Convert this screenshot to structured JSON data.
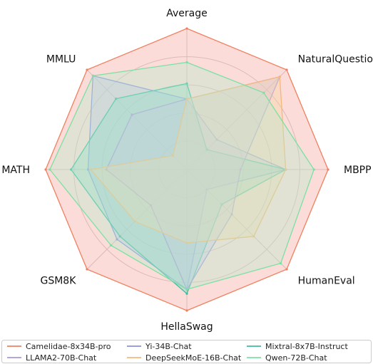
{
  "chart_data": {
    "type": "radar",
    "axes": [
      "Average",
      "NaturalQuestions",
      "MBPP",
      "HumanEval",
      "HellaSwag",
      "GSM8K",
      "MATH",
      "MMLU"
    ],
    "range": [
      0,
      1
    ],
    "grid": true,
    "legend_position": "bottom",
    "legend_columns": 4,
    "series": [
      {
        "name": "Camelidae-8x34B-pro",
        "color": "#f08060",
        "fill": "#f7a8a0",
        "values": [
          1.0,
          1.0,
          1.0,
          1.0,
          1.0,
          1.0,
          1.0,
          1.0
        ]
      },
      {
        "name": "Yi-34B-Chat",
        "color": "#8c8fdc",
        "fill": "#b8bbf0",
        "values": [
          0.5,
          0.3,
          0.7,
          0.2,
          0.85,
          0.7,
          0.7,
          0.94
        ]
      },
      {
        "name": "Mixtral-8x7B-Instruct",
        "color": "#3cbca0",
        "fill": "#7fd8c4",
        "values": [
          0.61,
          0.2,
          0.7,
          0.35,
          0.88,
          0.67,
          0.82,
          0.71
        ]
      },
      {
        "name": "LLAMA2-70B-Chat",
        "color": "#a99ad8",
        "fill": "#c9bfe8",
        "values": [
          0.5,
          0.93,
          0.38,
          0.45,
          0.85,
          0.36,
          0.57,
          0.55
        ]
      },
      {
        "name": "DeepSeekMoE-16B-Chat",
        "color": "#f4b87a",
        "fill": "#f8d4a8",
        "values": [
          0.5,
          0.93,
          0.7,
          0.67,
          0.52,
          0.52,
          0.68,
          0.14
        ]
      },
      {
        "name": "Qwen-72B-Chat",
        "color": "#7ce0a4",
        "fill": "#b8eccc",
        "values": [
          0.76,
          0.77,
          0.9,
          0.94,
          0.85,
          0.76,
          0.97,
          0.94
        ]
      }
    ]
  }
}
